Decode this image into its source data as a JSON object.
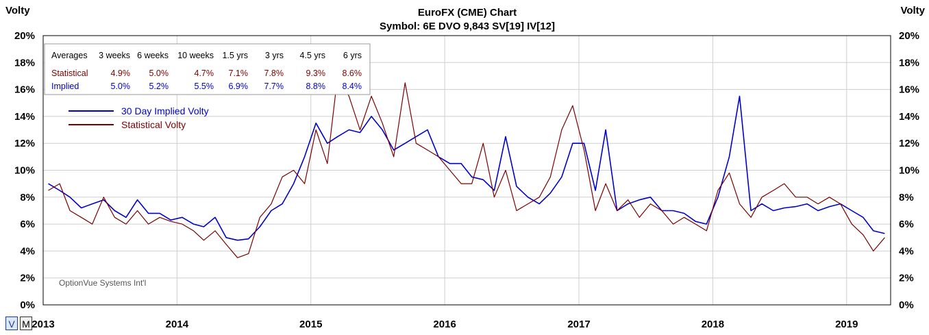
{
  "chart_data": {
    "type": "line",
    "title": "EuroFX (CME) Chart",
    "subtitle": "Symbol: 6E  DVO 9,843  SV[19]  IV[12]",
    "ylabel_left": "Volty",
    "ylabel_right": "Volty",
    "ylim": [
      0,
      20
    ],
    "yticks": [
      "0%",
      "2%",
      "4%",
      "6%",
      "8%",
      "10%",
      "12%",
      "14%",
      "16%",
      "18%",
      "20%"
    ],
    "xlim": [
      "2013-01-01",
      "2019-05-01"
    ],
    "xticks": [
      "2013",
      "2014",
      "2015",
      "2016",
      "2017",
      "2018",
      "2019"
    ],
    "grid": true,
    "legend_position": "top-left",
    "series": [
      {
        "name": "30 Day Implied Volty",
        "color": "#0000cc",
        "x": [
          "2013-01",
          "2013-02",
          "2013-03",
          "2013-04",
          "2013-05",
          "2013-06",
          "2013-07",
          "2013-08",
          "2013-09",
          "2013-10",
          "2013-11",
          "2013-12",
          "2014-01",
          "2014-02",
          "2014-03",
          "2014-04",
          "2014-05",
          "2014-06",
          "2014-07",
          "2014-08",
          "2014-09",
          "2014-10",
          "2014-11",
          "2014-12",
          "2015-01",
          "2015-02",
          "2015-03",
          "2015-04",
          "2015-05",
          "2015-06",
          "2015-07",
          "2015-08",
          "2015-09",
          "2015-10",
          "2015-11",
          "2015-12",
          "2016-01",
          "2016-02",
          "2016-03",
          "2016-04",
          "2016-05",
          "2016-06",
          "2016-07",
          "2016-08",
          "2016-09",
          "2016-10",
          "2016-11",
          "2016-12",
          "2017-01",
          "2017-02",
          "2017-03",
          "2017-04",
          "2017-05",
          "2017-06",
          "2017-07",
          "2017-08",
          "2017-09",
          "2017-10",
          "2017-11",
          "2017-12",
          "2018-01",
          "2018-02",
          "2018-03",
          "2018-04",
          "2018-05",
          "2018-06",
          "2018-07",
          "2018-08",
          "2018-09",
          "2018-10",
          "2018-11",
          "2018-12",
          "2019-01",
          "2019-02",
          "2019-03",
          "2019-04"
        ],
        "values": [
          9.0,
          8.5,
          8.0,
          7.2,
          7.5,
          7.8,
          7.0,
          6.5,
          7.8,
          6.8,
          6.8,
          6.3,
          6.5,
          6.0,
          5.8,
          6.5,
          5.0,
          4.8,
          4.9,
          5.8,
          7.0,
          7.5,
          9.0,
          11.0,
          13.5,
          12.0,
          12.5,
          13.0,
          12.8,
          14.0,
          13.0,
          11.5,
          12.0,
          12.5,
          13.0,
          11.0,
          10.5,
          10.5,
          9.5,
          9.3,
          8.5,
          12.5,
          8.8,
          8.0,
          7.5,
          8.3,
          9.5,
          12.0,
          12.0,
          8.5,
          13.0,
          7.0,
          7.5,
          7.8,
          8.0,
          7.0,
          7.0,
          6.8,
          6.2,
          6.0,
          8.0,
          11.0,
          15.5,
          7.0,
          7.5,
          7.0,
          7.2,
          7.3,
          7.5,
          7.0,
          7.3,
          7.5,
          7.0,
          6.5,
          5.5,
          5.3
        ]
      },
      {
        "name": "Statistical Volty",
        "color": "#7a0000",
        "x": [
          "2013-01",
          "2013-02",
          "2013-03",
          "2013-04",
          "2013-05",
          "2013-06",
          "2013-07",
          "2013-08",
          "2013-09",
          "2013-10",
          "2013-11",
          "2013-12",
          "2014-01",
          "2014-02",
          "2014-03",
          "2014-04",
          "2014-05",
          "2014-06",
          "2014-07",
          "2014-08",
          "2014-09",
          "2014-10",
          "2014-11",
          "2014-12",
          "2015-01",
          "2015-02",
          "2015-03",
          "2015-04",
          "2015-05",
          "2015-06",
          "2015-07",
          "2015-08",
          "2015-09",
          "2015-10",
          "2015-11",
          "2015-12",
          "2016-01",
          "2016-02",
          "2016-03",
          "2016-04",
          "2016-05",
          "2016-06",
          "2016-07",
          "2016-08",
          "2016-09",
          "2016-10",
          "2016-11",
          "2016-12",
          "2017-01",
          "2017-02",
          "2017-03",
          "2017-04",
          "2017-05",
          "2017-06",
          "2017-07",
          "2017-08",
          "2017-09",
          "2017-10",
          "2017-11",
          "2017-12",
          "2018-01",
          "2018-02",
          "2018-03",
          "2018-04",
          "2018-05",
          "2018-06",
          "2018-07",
          "2018-08",
          "2018-09",
          "2018-10",
          "2018-11",
          "2018-12",
          "2019-01",
          "2019-02",
          "2019-03",
          "2019-04"
        ],
        "values": [
          8.5,
          9.0,
          7.0,
          6.5,
          6.0,
          8.0,
          6.5,
          6.0,
          7.0,
          6.0,
          6.5,
          6.2,
          6.0,
          5.5,
          4.8,
          5.5,
          4.5,
          3.5,
          3.8,
          6.5,
          7.5,
          9.5,
          10.0,
          9.0,
          13.0,
          10.5,
          17.0,
          15.5,
          13.0,
          15.5,
          13.5,
          11.0,
          16.5,
          12.0,
          11.5,
          11.0,
          10.0,
          9.0,
          9.0,
          12.0,
          8.0,
          10.0,
          7.0,
          7.5,
          8.0,
          9.5,
          13.0,
          14.8,
          11.5,
          7.0,
          9.0,
          7.0,
          7.8,
          6.5,
          7.5,
          7.0,
          6.0,
          6.5,
          6.0,
          5.5,
          8.5,
          9.8,
          7.5,
          6.5,
          8.0,
          8.5,
          9.0,
          8.0,
          8.0,
          7.5,
          8.0,
          7.5,
          6.0,
          5.2,
          4.0,
          5.0
        ]
      }
    ],
    "averages_table": {
      "header": [
        "Averages",
        "3 weeks",
        "6 weeks",
        "10 weeks",
        "1.5 yrs",
        "3 yrs",
        "4.5 yrs",
        "6 yrs"
      ],
      "rows": [
        {
          "label": "Statistical",
          "color": "#7a0000",
          "values": [
            "4.9%",
            "5.0%",
            "4.7%",
            "7.1%",
            "7.8%",
            "9.3%",
            "8.6%"
          ]
        },
        {
          "label": "Implied",
          "color": "#0000cc",
          "values": [
            "5.0%",
            "5.2%",
            "5.5%",
            "6.9%",
            "7.7%",
            "8.8%",
            "8.4%"
          ]
        }
      ]
    },
    "watermark": "OptionVue Systems Int'l"
  },
  "controls": {
    "v_label": "V",
    "m_label": "M"
  }
}
